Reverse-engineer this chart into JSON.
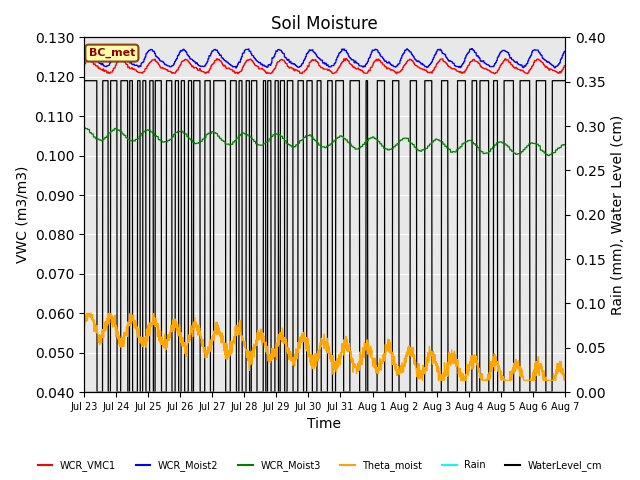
{
  "title": "Soil Moisture",
  "xlabel": "Time",
  "ylabel_left": "VWC (m3/m3)",
  "ylabel_right": "Rain (mm), Water Level (cm)",
  "ylim_left": [
    0.04,
    0.13
  ],
  "ylim_right": [
    0.0,
    0.4
  ],
  "yticks_left": [
    0.04,
    0.05,
    0.06,
    0.07,
    0.08,
    0.09,
    0.1,
    0.11,
    0.12,
    0.13
  ],
  "yticks_right": [
    0.0,
    0.05,
    0.1,
    0.15,
    0.2,
    0.25,
    0.3,
    0.35,
    0.4
  ],
  "background_color": "#e8e8e8",
  "annotation_text": "BC_met",
  "WCR_VMC1_base": 0.1225,
  "WCR_VMC1_amp": 0.0015,
  "WCR_Moist2_base": 0.1245,
  "WCR_Moist2_amp": 0.002,
  "WCR_Moist3_base": 0.1055,
  "WCR_Moist3_amp": 0.0015,
  "WCR_Moist3_trend": -0.004,
  "Theta_base": 0.057,
  "Theta_trend": -0.014,
  "Rain_value": 0.04,
  "WaterLevel_high": 0.119,
  "WaterLevel_low": 0.04,
  "n_points": 2016,
  "n_days": 15,
  "tick_labels": [
    "Jul 23",
    "Jul 24",
    "Jul 25",
    "Jul 26",
    "Jul 27",
    "Jul 28",
    "Jul 29",
    "Jul 30",
    "Jul 31",
    "Aug 1",
    "Aug 2",
    "Aug 3",
    "Aug 4",
    "Aug 5",
    "Aug 6",
    "Aug 7"
  ],
  "legend_colors": [
    "red",
    "blue",
    "green",
    "orange",
    "cyan",
    "black"
  ],
  "legend_labels": [
    "WCR_VMC1",
    "WCR_Moist2",
    "WCR_Moist3",
    "Theta_moist",
    "Rain",
    "WaterLevel_cm"
  ]
}
